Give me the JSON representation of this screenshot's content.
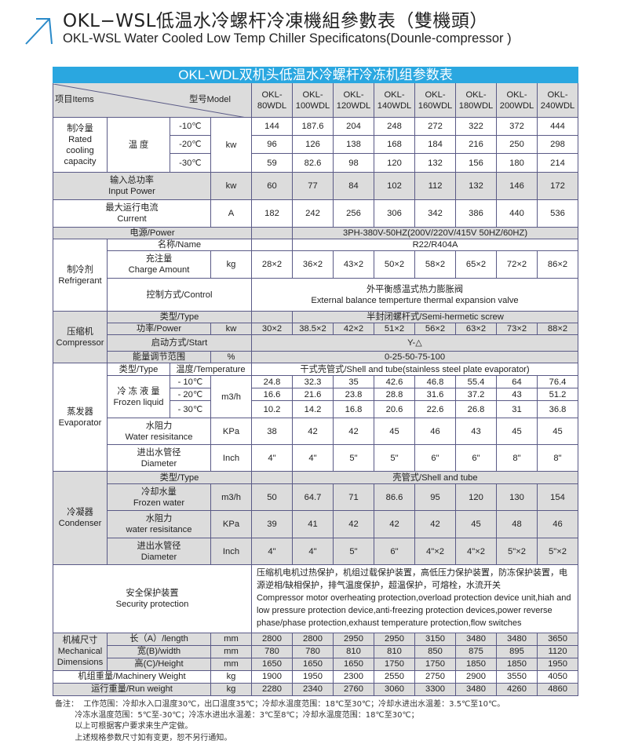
{
  "title_zh": "OKL−WSL低温水冷螺杆冷凍機組參數表（雙機頭）",
  "title_en": "OKL-WSL Water Cooled Low Temp Chiller Specificatons(Dounle-compressor )",
  "accent": "#2aa7e0",
  "table": {
    "banner": "OKL-WDL双机头低温水冷螺杆冷冻机组参数表",
    "items": "项目Items",
    "model": "型号Model",
    "models": [
      "OKL-\n80WDL",
      "OKL-\n100WDL",
      "OKL-\n120WDL",
      "OKL-\n140WDL",
      "OKL-\n160WDL",
      "OKL-\n180WDL",
      "OKL-\n200WDL",
      "OKL-\n240WDL"
    ],
    "cooling": {
      "label": "制冷量\nRated\ncooling\ncapacity",
      "temp": "温 度",
      "temps": [
        "-10℃",
        "-20℃",
        "-30℃"
      ],
      "unit": "kw",
      "values": [
        [
          "144",
          "187.6",
          "204",
          "248",
          "272",
          "322",
          "372",
          "444"
        ],
        [
          "96",
          "126",
          "138",
          "168",
          "184",
          "216",
          "250",
          "298"
        ],
        [
          "59",
          "82.6",
          "98",
          "120",
          "132",
          "156",
          "180",
          "214"
        ]
      ]
    },
    "input_power": {
      "label": "输入总功率\nInput Power",
      "unit": "kw",
      "values": [
        "60",
        "77",
        "84",
        "102",
        "112",
        "132",
        "146",
        "172"
      ]
    },
    "current": {
      "label": "最大运行电流\nCurrent",
      "unit": "A",
      "values": [
        "182",
        "242",
        "256",
        "306",
        "342",
        "386",
        "440",
        "536"
      ]
    },
    "power": {
      "label": "电源/Power",
      "value": "3PH-380V-50HZ(200V/220V/415V  50HZ/60HZ)"
    },
    "refrigerant": {
      "label": "制冷剂\nRefrigerant",
      "name_label": "名称/Name",
      "name": "R22/R404A",
      "charge_label": "充注量\nCharge Amount",
      "charge_unit": "kg",
      "charge": [
        "28×2",
        "36×2",
        "43×2",
        "50×2",
        "58×2",
        "65×2",
        "72×2",
        "86×2"
      ],
      "control_label": "控制方式/Control",
      "control": "外平衡感温式热力膨胀阀\nExternal balance temperture thermal expansion valve"
    },
    "compressor": {
      "label": "压缩机\nCompressor",
      "type_label": "类型/Type",
      "type": "半封闭螺杆式/Semi-hermetic screw",
      "power_label": "功率/Power",
      "power_unit": "kw",
      "power": [
        "30×2",
        "38.5×2",
        "42×2",
        "51×2",
        "56×2",
        "63×2",
        "73×2",
        "88×2"
      ],
      "start_label": "启动方式/Start",
      "start": "Y-△",
      "energy_label": "能量调节范围",
      "energy_unit": "%",
      "energy": "0-25-50-75-100"
    },
    "evaporator": {
      "label": "蒸发器\nEvaporator",
      "type_label": "类型/Type",
      "temp_label": "温度/Temperature",
      "type": "干式壳管式/Shell and tube(stainless steel plate evaporator)",
      "frozen_label": "冷 冻 液 量\nFrozen liquid",
      "temps": [
        "- 10℃",
        "- 20℃",
        "- 30℃"
      ],
      "frozen_unit": "m3/h",
      "frozen": [
        [
          "24.8",
          "32.3",
          "35",
          "42.6",
          "46.8",
          "55.4",
          "64",
          "76.4"
        ],
        [
          "16.6",
          "21.6",
          "23.8",
          "28.8",
          "31.6",
          "37.2",
          "43",
          "51.2"
        ],
        [
          "10.2",
          "14.2",
          "16.8",
          "20.6",
          "22.6",
          "26.8",
          "31",
          "36.8"
        ]
      ],
      "wr_label": "水阻力\nWater resisitance",
      "wr_unit": "KPa",
      "wr": [
        "38",
        "42",
        "42",
        "45",
        "46",
        "43",
        "45",
        "45"
      ],
      "dia_label": "进出水管径\nDiameter",
      "dia_unit": "Inch",
      "dia": [
        "4\"",
        "4\"",
        "5\"",
        "5\"",
        "6\"",
        "6\"",
        "8\"",
        "8\""
      ]
    },
    "condenser": {
      "label": "冷凝器\nCondenser",
      "type_label": "类型/Type",
      "type": "壳管式/Shell and tube",
      "fw_label": "冷却水量\nFrozen water",
      "fw_unit": "m3/h",
      "fw": [
        "50",
        "64.7",
        "71",
        "86.6",
        "95",
        "120",
        "130",
        "154"
      ],
      "wr_label": "水阻力\nwater resisitance",
      "wr_unit": "KPa",
      "wr": [
        "39",
        "41",
        "42",
        "42",
        "42",
        "45",
        "48",
        "46"
      ],
      "dia_label": "进出水管径\nDiameter",
      "dia_unit": "Inch",
      "dia": [
        "4\"",
        "4\"",
        "5\"",
        "6\"",
        "4\"×2",
        "4\"×2",
        "5\"×2",
        "5\"×2"
      ]
    },
    "security": {
      "label": "安全保护装置\nSecurity protection",
      "value": "压缩机电机过热保护，机组过载保护装置，高低压力保护装置，防冻保护装置，电源逆相/缺相保护，排气温度保护，超温保护，可熔栓，水流开关\nCompressor motor overheating protection,overload protection device unit,hiah and low pressure protection device,anti-freezing protection devices,power reverse phase/phase protection,exhaust temperature protection,flow switches"
    },
    "dimensions": {
      "label": "机械尺寸\nMechanical\nDimensions",
      "unit": "mm",
      "length_label": "长（A）/length",
      "length": [
        "2800",
        "2800",
        "2950",
        "2950",
        "3150",
        "3480",
        "3480",
        "3650"
      ],
      "width_label": "宽(B)/width",
      "width": [
        "780",
        "780",
        "810",
        "810",
        "850",
        "875",
        "895",
        "1120"
      ],
      "height_label": "高(C)/Height",
      "height": [
        "1650",
        "1650",
        "1650",
        "1750",
        "1750",
        "1850",
        "1850",
        "1950"
      ]
    },
    "weight": {
      "label": "机组重量/Machinery Weight",
      "unit": "kg",
      "values": [
        "1900",
        "1950",
        "2300",
        "2550",
        "2750",
        "2900",
        "3550",
        "4050"
      ]
    },
    "run_weight": {
      "label": "运行重量/Run weight",
      "unit": "kg",
      "values": [
        "2280",
        "2340",
        "2760",
        "3060",
        "3300",
        "3480",
        "4260",
        "4860"
      ]
    }
  },
  "notes": "备注：  工作范围：冷却水入口温度30℃，出口温度35℃；冷却水温度范围：18℃至30℃；冷却水进出水温差：3.5℃至10℃。\n        冷冻水温度范围：5℃至-30℃；冷冻水进出水温差：3℃至8℃；冷却水温度范围：18℃至30℃；\n        以上可根据客户要求来生产定做。\n        上述规格参数尺寸如有变更，恕不另行通知。"
}
